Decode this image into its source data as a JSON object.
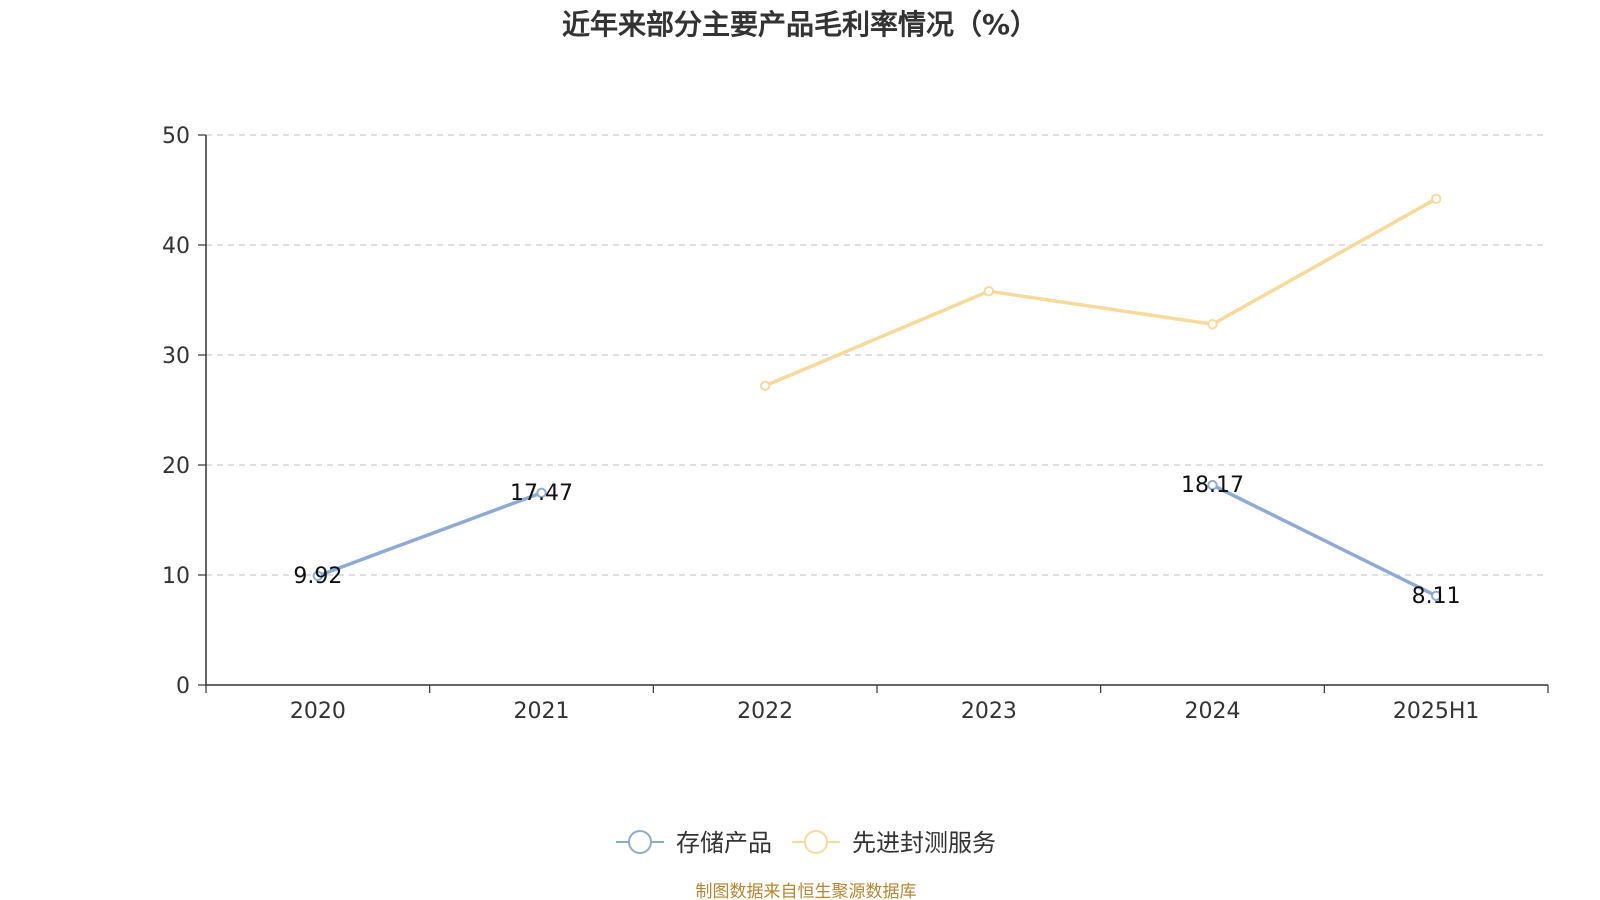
{
  "chart_data": {
    "type": "line",
    "title": "近年来部分主要产品毛利率情况（%）",
    "xlabel": "",
    "ylabel": "",
    "categories": [
      "2020",
      "2021",
      "2022",
      "2023",
      "2024",
      "2025H1"
    ],
    "ylim": [
      0,
      50
    ],
    "yticks": [
      0,
      10,
      20,
      30,
      40,
      50
    ],
    "grid": true,
    "legend": "bottom-center",
    "series": [
      {
        "name": "存储产品",
        "color": "#8eabd8",
        "values": [
          9.92,
          17.47,
          null,
          null,
          18.17,
          8.11
        ],
        "labels": [
          "9.92",
          "17.47",
          "",
          "",
          "18.17",
          "8.11"
        ]
      },
      {
        "name": "先进封测服务",
        "color": "#f8d99a",
        "values": [
          null,
          null,
          27.2,
          35.8,
          32.8,
          44.2
        ],
        "labels": [
          "",
          "",
          "",
          "",
          "",
          ""
        ]
      }
    ]
  },
  "source": "制图数据来自恒生聚源数据库",
  "colors": {
    "axis": "#333333",
    "grid": "#cccccc",
    "source": "#b8862f"
  }
}
